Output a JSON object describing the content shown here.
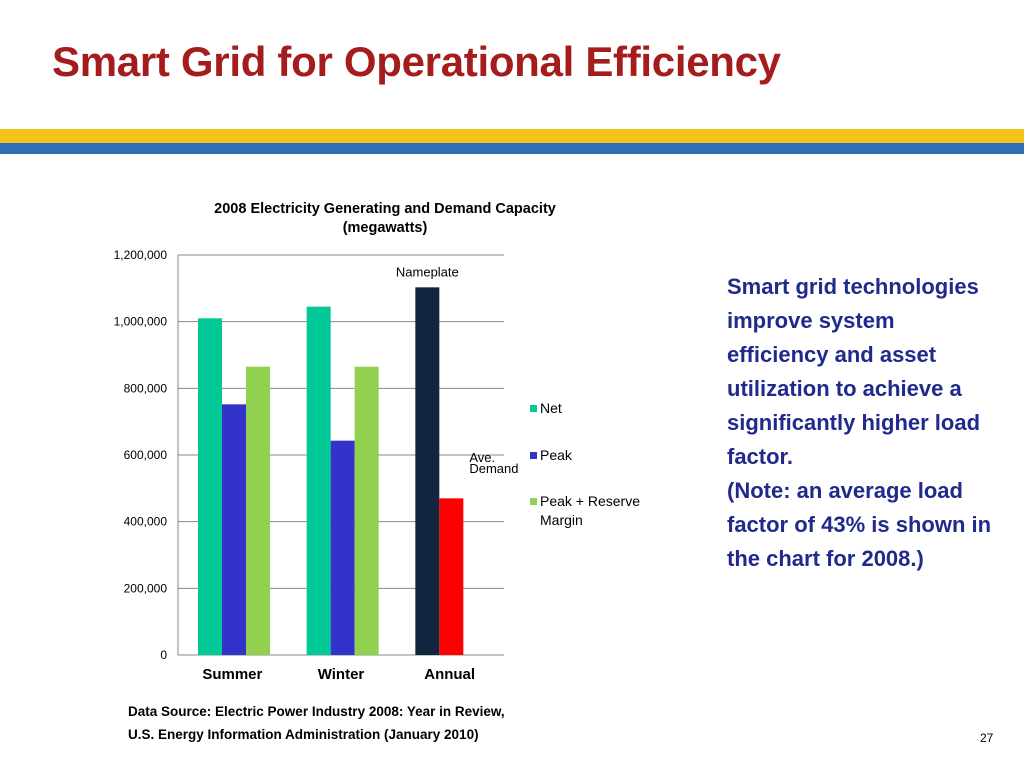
{
  "slide": {
    "title": "Smart Grid for Operational Efficiency",
    "side_text_lines": [
      "Smart grid technologies improve system efficiency and asset utilization to achieve a significantly higher load factor.",
      "(Note: an average load factor of 43% is shown in the chart for 2008.)"
    ],
    "source_lines": [
      "Data Source:  Electric Power Industry 2008: Year in Review,",
      "U.S. Energy Information Administration (January 2010)"
    ],
    "page_number": "27",
    "colors": {
      "title": "#a51c1c",
      "stripe_yellow": "#f4c21b",
      "stripe_blue": "#2e6fb5",
      "side_text": "#1f2a8c"
    }
  },
  "chart_data": {
    "type": "bar",
    "title": "2008 Electricity Generating and Demand Capacity (megawatts)",
    "title_lines": [
      "2008 Electricity Generating and Demand Capacity",
      "(megawatts)"
    ],
    "categories": [
      "Summer",
      "Winter",
      "Annual"
    ],
    "series": [
      {
        "name": "Net",
        "color": "#00c896",
        "values": [
          1010000,
          1045000,
          null
        ]
      },
      {
        "name": "Peak",
        "color": "#3333cc",
        "values": [
          752000,
          643000,
          null
        ]
      },
      {
        "name": "Peak + Reserve Margin",
        "color": "#92d050",
        "values": [
          865000,
          865000,
          null
        ]
      }
    ],
    "extra_bars": [
      {
        "category": "Annual",
        "label": "Nameplate",
        "value": 1103000,
        "color": "#12253f",
        "slot": 0
      },
      {
        "category": "Annual",
        "label": "Ave. Demand",
        "value": 470000,
        "color": "#ff0000",
        "slot": 1
      }
    ],
    "legend_lines": [
      [
        "Net"
      ],
      [
        "Peak"
      ],
      [
        "Peak + Reserve",
        "Margin"
      ]
    ],
    "annotation_lines": {
      "Nameplate": [
        "Nameplate"
      ],
      "Ave. Demand": [
        "Ave.",
        "Demand"
      ]
    },
    "ylim": [
      0,
      1200000
    ],
    "yticks": [
      0,
      200000,
      400000,
      600000,
      800000,
      1000000,
      1200000
    ],
    "ytick_labels": [
      "0",
      "200,000",
      "400,000",
      "600,000",
      "800,000",
      "1,000,000",
      "1,200,000"
    ],
    "grid": true,
    "legend_position": "right",
    "xlabel": "",
    "ylabel": ""
  }
}
